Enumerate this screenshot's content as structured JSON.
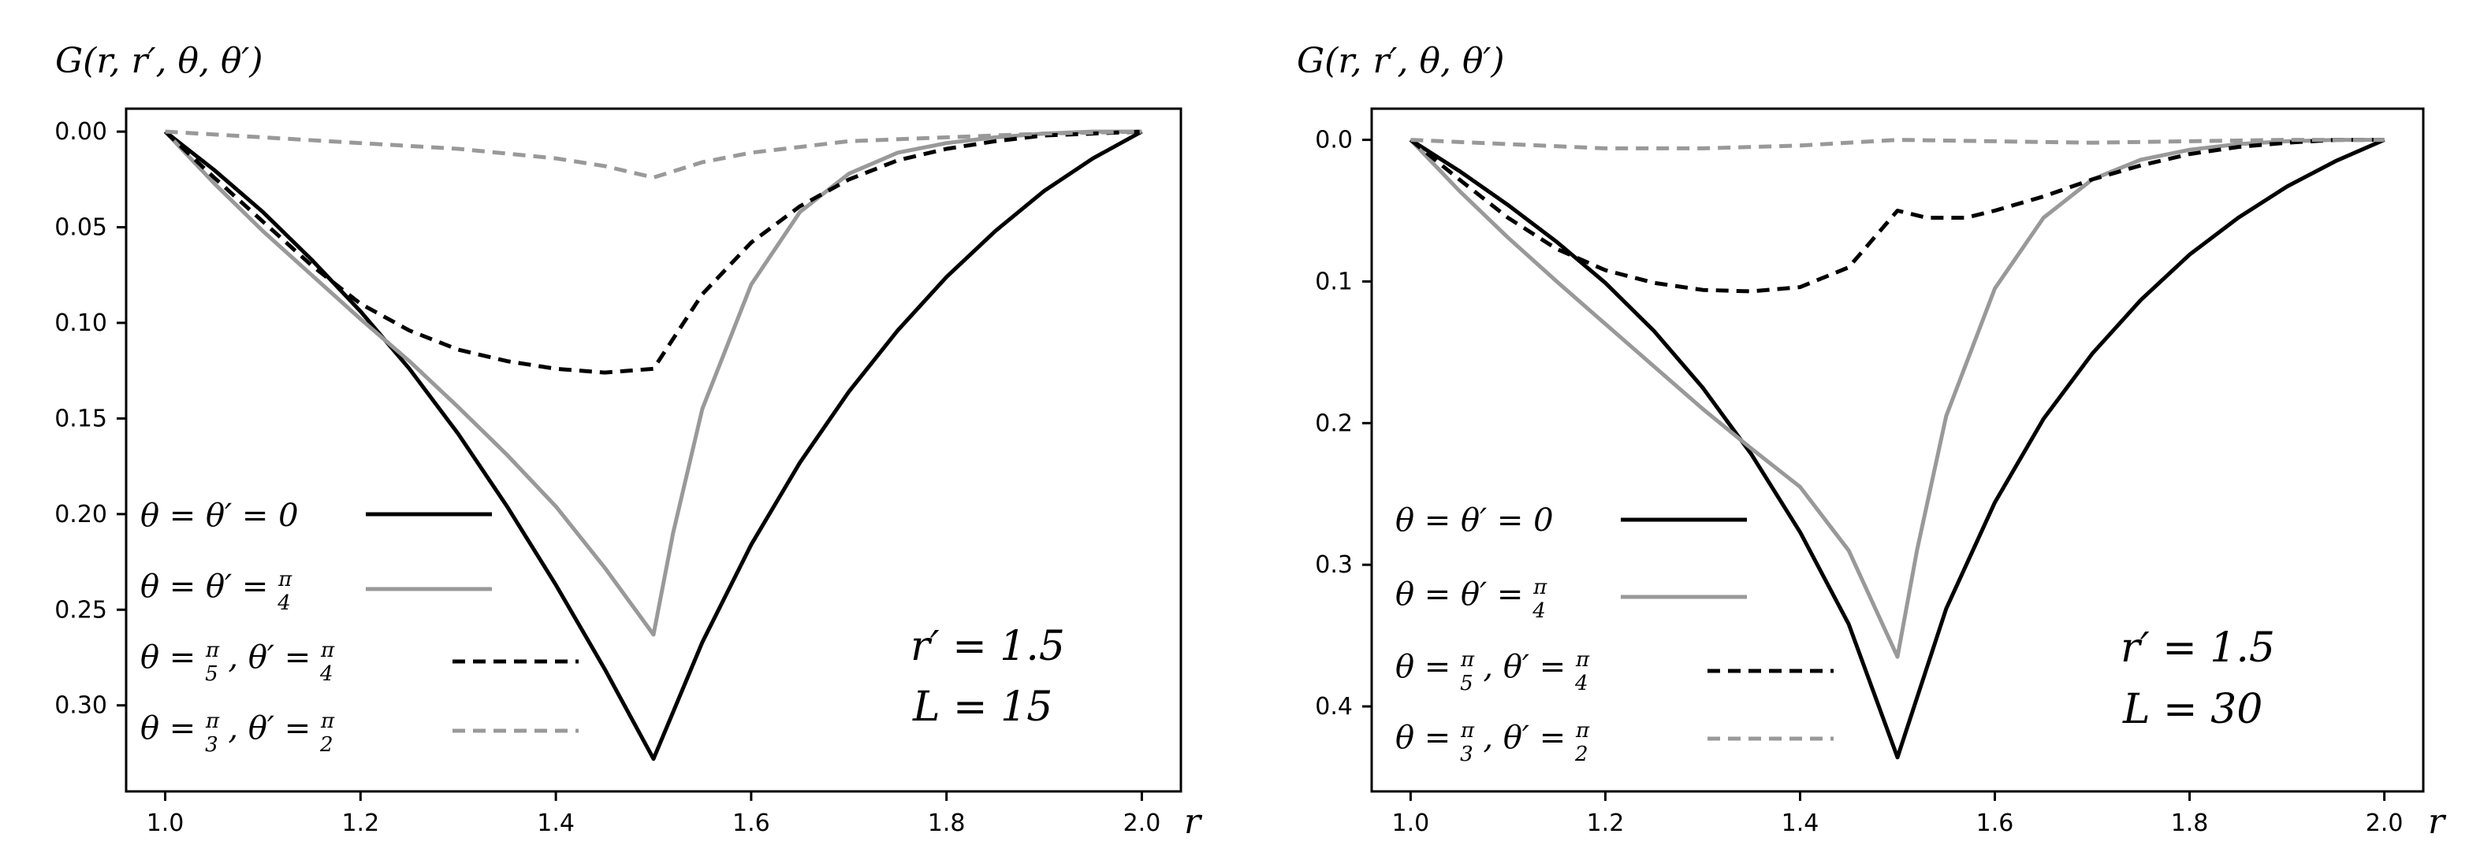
{
  "chart_data": [
    {
      "type": "line",
      "ylabel": "G(r, r′, θ, θ′)",
      "xlabel": "r",
      "xlim": [
        0.96,
        2.04
      ],
      "ylim": [
        0.345,
        -0.012
      ],
      "y_inverted": true,
      "xticks": [
        "1.0",
        "1.2",
        "1.4",
        "1.6",
        "1.8",
        "2.0"
      ],
      "xtick_values": [
        1.0,
        1.2,
        1.4,
        1.6,
        1.8,
        2.0
      ],
      "yticks": [
        "0.00",
        "0.05",
        "0.10",
        "0.15",
        "0.20",
        "0.25",
        "0.30"
      ],
      "ytick_values": [
        0.0,
        0.05,
        0.1,
        0.15,
        0.2,
        0.25,
        0.3
      ],
      "annotation": [
        "r′ = 1.5",
        "L = 15"
      ],
      "legend_position": "lower-left",
      "series": [
        {
          "name": "θ = θ′ = 0",
          "color": "#000000",
          "dash": "none",
          "x": [
            1.0,
            1.05,
            1.1,
            1.15,
            1.2,
            1.25,
            1.3,
            1.35,
            1.4,
            1.45,
            1.5,
            1.55,
            1.6,
            1.65,
            1.7,
            1.75,
            1.8,
            1.85,
            1.9,
            1.95,
            2.0
          ],
          "y": [
            0.0,
            0.02,
            0.042,
            0.067,
            0.094,
            0.124,
            0.158,
            0.196,
            0.237,
            0.281,
            0.328,
            0.267,
            0.216,
            0.173,
            0.136,
            0.104,
            0.076,
            0.052,
            0.031,
            0.014,
            0.0
          ]
        },
        {
          "name": "θ = θ′ = π/4",
          "color": "#999999",
          "dash": "none",
          "x": [
            1.0,
            1.05,
            1.1,
            1.15,
            1.2,
            1.25,
            1.3,
            1.35,
            1.4,
            1.45,
            1.5,
            1.52,
            1.55,
            1.6,
            1.65,
            1.7,
            1.75,
            1.8,
            1.85,
            1.9,
            1.95,
            2.0
          ],
          "y": [
            0.0,
            0.027,
            0.052,
            0.075,
            0.098,
            0.12,
            0.144,
            0.169,
            0.196,
            0.228,
            0.263,
            0.21,
            0.145,
            0.08,
            0.042,
            0.022,
            0.011,
            0.006,
            0.003,
            0.001,
            0.0,
            0.0
          ]
        },
        {
          "name": "θ = π/5 , θ′ = π/4",
          "color": "#000000",
          "dash": "dashed",
          "x": [
            1.0,
            1.05,
            1.1,
            1.15,
            1.2,
            1.25,
            1.3,
            1.35,
            1.4,
            1.45,
            1.5,
            1.55,
            1.6,
            1.65,
            1.7,
            1.75,
            1.8,
            1.85,
            1.9,
            1.95,
            2.0
          ],
          "y": [
            0.0,
            0.024,
            0.047,
            0.07,
            0.09,
            0.104,
            0.114,
            0.12,
            0.124,
            0.126,
            0.124,
            0.085,
            0.058,
            0.039,
            0.025,
            0.015,
            0.009,
            0.005,
            0.002,
            0.001,
            0.0
          ]
        },
        {
          "name": "θ = π/3 , θ′ = π/2",
          "color": "#999999",
          "dash": "dashed",
          "x": [
            1.0,
            1.1,
            1.2,
            1.3,
            1.4,
            1.45,
            1.5,
            1.55,
            1.6,
            1.7,
            1.8,
            1.9,
            2.0
          ],
          "y": [
            0.0,
            0.003,
            0.006,
            0.009,
            0.014,
            0.018,
            0.024,
            0.016,
            0.011,
            0.005,
            0.003,
            0.001,
            0.0
          ]
        }
      ]
    },
    {
      "type": "line",
      "ylabel": "G(r, r′, θ, θ′)",
      "xlabel": "r",
      "xlim": [
        0.96,
        2.04
      ],
      "ylim": [
        0.46,
        -0.022
      ],
      "y_inverted": true,
      "xticks": [
        "1.0",
        "1.2",
        "1.4",
        "1.6",
        "1.8",
        "2.0"
      ],
      "xtick_values": [
        1.0,
        1.2,
        1.4,
        1.6,
        1.8,
        2.0
      ],
      "yticks": [
        "0.0",
        "0.1",
        "0.2",
        "0.3",
        "0.4"
      ],
      "ytick_values": [
        0.0,
        0.1,
        0.2,
        0.3,
        0.4
      ],
      "annotation": [
        "r′ = 1.5",
        "L = 30"
      ],
      "legend_position": "lower-left",
      "series": [
        {
          "name": "θ = θ′ = 0",
          "color": "#000000",
          "dash": "none",
          "x": [
            1.0,
            1.05,
            1.1,
            1.15,
            1.2,
            1.25,
            1.3,
            1.35,
            1.4,
            1.45,
            1.5,
            1.55,
            1.6,
            1.65,
            1.7,
            1.75,
            1.8,
            1.85,
            1.9,
            1.95,
            2.0
          ],
          "y": [
            0.0,
            0.022,
            0.046,
            0.072,
            0.101,
            0.135,
            0.175,
            0.222,
            0.277,
            0.342,
            0.436,
            0.331,
            0.256,
            0.197,
            0.151,
            0.113,
            0.081,
            0.055,
            0.033,
            0.015,
            0.0
          ]
        },
        {
          "name": "θ = θ′ = π/4",
          "color": "#999999",
          "dash": "none",
          "x": [
            1.0,
            1.05,
            1.1,
            1.15,
            1.2,
            1.25,
            1.3,
            1.35,
            1.4,
            1.45,
            1.5,
            1.52,
            1.55,
            1.6,
            1.65,
            1.7,
            1.75,
            1.8,
            1.85,
            1.9,
            1.95,
            2.0
          ],
          "y": [
            0.0,
            0.036,
            0.069,
            0.1,
            0.13,
            0.16,
            0.19,
            0.218,
            0.245,
            0.29,
            0.365,
            0.29,
            0.195,
            0.105,
            0.055,
            0.028,
            0.014,
            0.007,
            0.003,
            0.001,
            0.0,
            0.0
          ]
        },
        {
          "name": "θ = π/5 , θ′ = π/4",
          "color": "#000000",
          "dash": "dashed",
          "x": [
            1.0,
            1.05,
            1.1,
            1.15,
            1.2,
            1.25,
            1.3,
            1.35,
            1.4,
            1.45,
            1.5,
            1.53,
            1.57,
            1.6,
            1.65,
            1.7,
            1.75,
            1.8,
            1.85,
            1.9,
            1.95,
            2.0
          ],
          "y": [
            0.0,
            0.028,
            0.055,
            0.077,
            0.092,
            0.101,
            0.106,
            0.107,
            0.104,
            0.09,
            0.05,
            0.055,
            0.055,
            0.05,
            0.04,
            0.028,
            0.018,
            0.01,
            0.005,
            0.002,
            0.0,
            0.0
          ]
        },
        {
          "name": "θ = π/3 , θ′ = π/2",
          "color": "#999999",
          "dash": "dashed",
          "x": [
            1.0,
            1.1,
            1.2,
            1.3,
            1.4,
            1.5,
            1.6,
            1.7,
            1.8,
            1.9,
            2.0
          ],
          "y": [
            0.0,
            0.003,
            0.006,
            0.006,
            0.004,
            0.0,
            0.001,
            0.002,
            0.001,
            0.0,
            0.0
          ]
        }
      ]
    }
  ]
}
